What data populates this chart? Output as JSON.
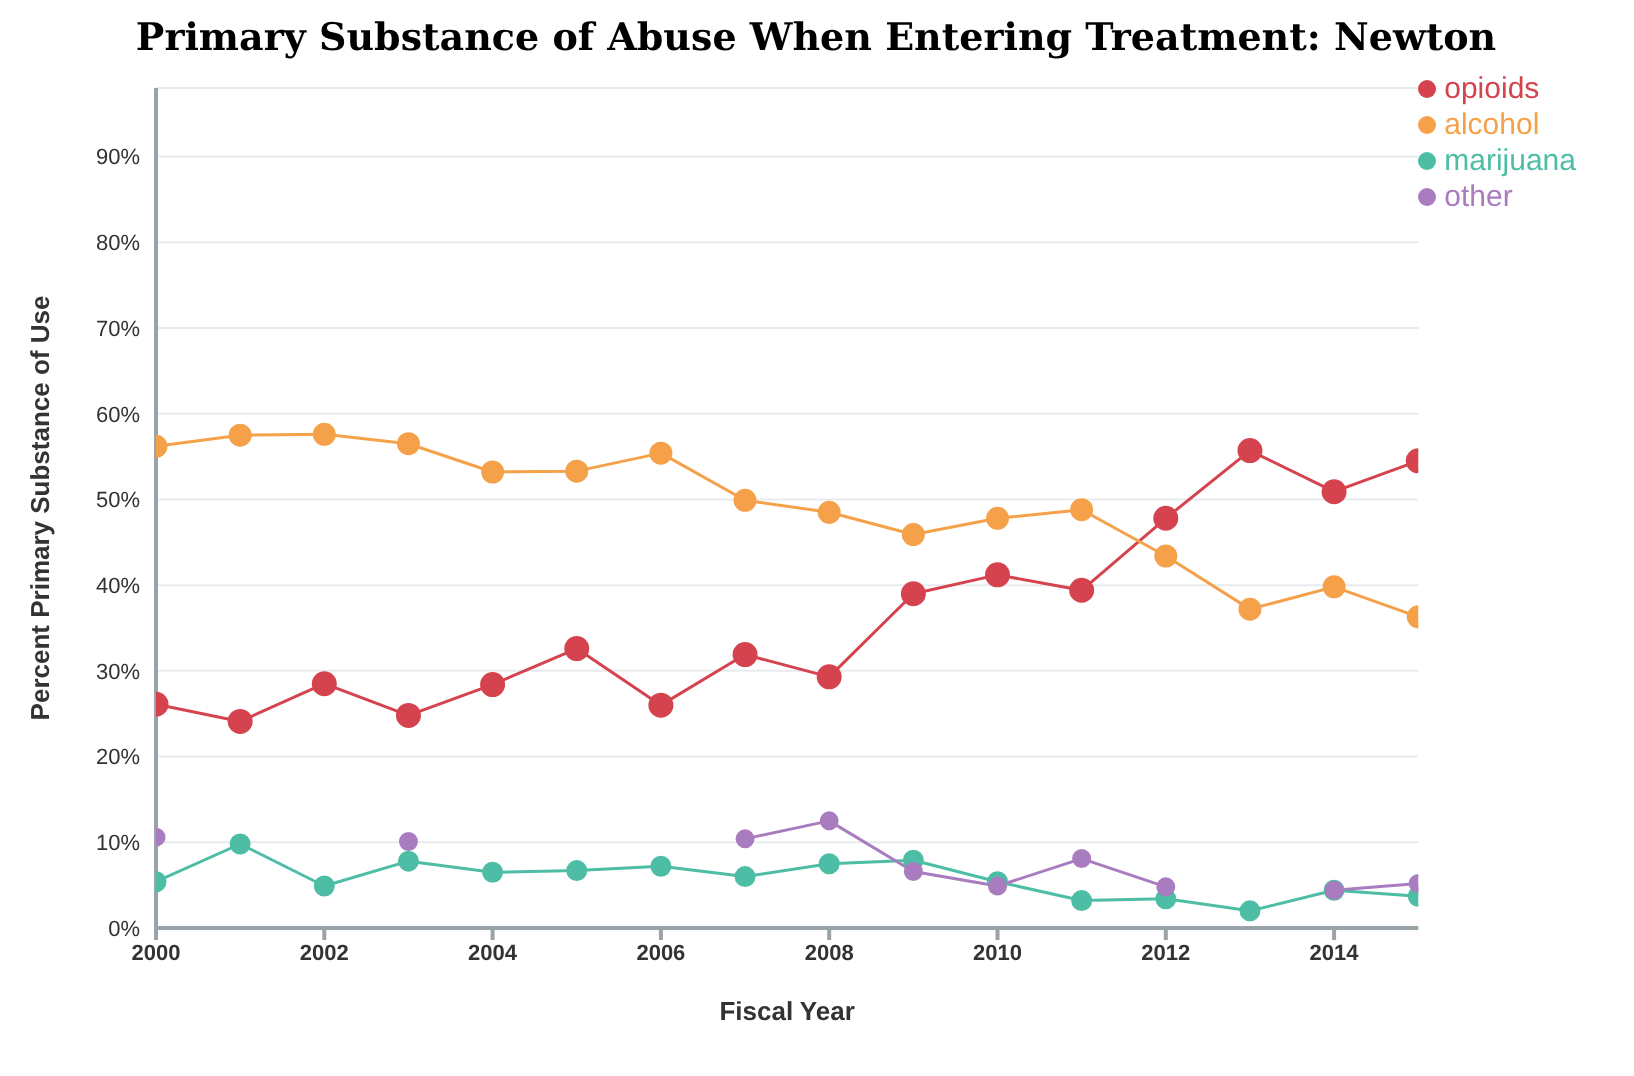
{
  "chart_data": {
    "type": "line",
    "title": "Primary Substance of Abuse When Entering Treatment: Newton",
    "xlabel": "Fiscal Year",
    "ylabel": "Percent Primary Substance of Use",
    "x": [
      2000,
      2001,
      2002,
      2003,
      2004,
      2005,
      2006,
      2007,
      2008,
      2009,
      2010,
      2011,
      2012,
      2013,
      2014,
      2015
    ],
    "series": [
      {
        "name": "opioids",
        "color": "#d4434e",
        "values": [
          26.1,
          24.1,
          28.5,
          24.8,
          28.4,
          32.6,
          26.0,
          31.9,
          29.3,
          39.0,
          41.2,
          39.4,
          47.8,
          55.7,
          50.9,
          54.5
        ]
      },
      {
        "name": "alcohol",
        "color": "#f5a14a",
        "values": [
          56.2,
          57.5,
          57.6,
          56.5,
          53.2,
          53.3,
          55.4,
          49.9,
          48.5,
          45.9,
          47.8,
          48.8,
          43.4,
          37.2,
          39.8,
          36.3
        ]
      },
      {
        "name": "marijuana",
        "color": "#4dbda5",
        "values": [
          5.4,
          9.8,
          4.9,
          7.8,
          6.5,
          6.7,
          7.2,
          6.0,
          7.5,
          7.9,
          5.4,
          3.2,
          3.4,
          2.0,
          4.4,
          3.7
        ]
      },
      {
        "name": "other",
        "color": "#a97cc0",
        "values": [
          10.6,
          null,
          null,
          10.1,
          null,
          null,
          null,
          10.4,
          12.5,
          6.6,
          4.9,
          8.1,
          4.8,
          null,
          4.4,
          5.2
        ]
      }
    ],
    "xlim": [
      2000,
      2015
    ],
    "xticks": [
      2000,
      2002,
      2004,
      2006,
      2008,
      2010,
      2012,
      2014
    ],
    "ylim": [
      0,
      98
    ],
    "yticks": [
      {
        "value": 0,
        "label": "0%"
      },
      {
        "value": 10,
        "label": "10%"
      },
      {
        "value": 20,
        "label": "20%"
      },
      {
        "value": 30,
        "label": "30%"
      },
      {
        "value": 40,
        "label": "40%"
      },
      {
        "value": 50,
        "label": "50%"
      },
      {
        "value": 60,
        "label": "60%"
      },
      {
        "value": 70,
        "label": "70%"
      },
      {
        "value": 80,
        "label": "80%"
      },
      {
        "value": 90,
        "label": "90%"
      }
    ],
    "grid": "y",
    "legend": "top right",
    "marker": "circle",
    "line_style": "solid"
  }
}
